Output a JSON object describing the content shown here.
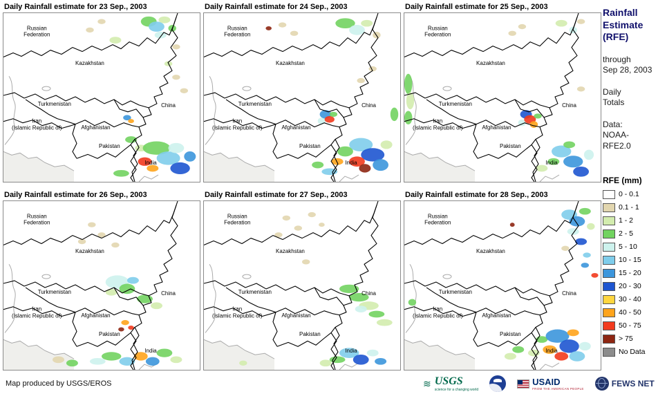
{
  "panels": [
    {
      "title": "Daily Rainfall estimate for 23 Sep., 2003",
      "spots": [
        [
          50,
          5,
          2,
          1.5,
          "t"
        ],
        [
          44,
          10,
          2,
          1.5,
          "t"
        ],
        [
          57,
          16,
          3,
          2,
          "g1"
        ],
        [
          74,
          5,
          4,
          3,
          "g2"
        ],
        [
          78,
          8,
          4,
          3,
          "b10"
        ],
        [
          82,
          4,
          3,
          2,
          "g1"
        ],
        [
          80,
          13,
          3,
          2,
          "c5"
        ],
        [
          86,
          9,
          2,
          2,
          "g2"
        ],
        [
          88,
          20,
          2,
          1.5,
          "t"
        ],
        [
          84,
          30,
          2,
          1.5,
          "g1"
        ],
        [
          88,
          38,
          2,
          1.5,
          "t"
        ],
        [
          92,
          46,
          2,
          1.5,
          "t"
        ],
        [
          63,
          62,
          2,
          1.6,
          "b15"
        ],
        [
          65,
          64,
          1.5,
          1.2,
          "o40"
        ],
        [
          65,
          75,
          3,
          2,
          "g2"
        ],
        [
          70,
          80,
          3,
          2,
          "g1"
        ],
        [
          78,
          80,
          7,
          4,
          "g2"
        ],
        [
          84,
          86,
          6,
          4,
          "b10"
        ],
        [
          90,
          92,
          5,
          3.5,
          "b20"
        ],
        [
          88,
          80,
          4,
          3,
          "c5"
        ],
        [
          95,
          85,
          3,
          3,
          "b15"
        ],
        [
          72,
          88,
          3.5,
          2.5,
          "r50"
        ],
        [
          76,
          92,
          3,
          2,
          "o40"
        ],
        [
          60,
          95,
          4,
          2,
          "g2"
        ]
      ]
    },
    {
      "title": "Daily Rainfall estimate for 24 Sep., 2003",
      "spots": [
        [
          33,
          9,
          1.5,
          1.2,
          "r75"
        ],
        [
          40,
          7,
          2,
          1.5,
          "t"
        ],
        [
          46,
          12,
          2,
          1.5,
          "t"
        ],
        [
          72,
          6,
          5,
          3,
          "g2"
        ],
        [
          78,
          10,
          4,
          3,
          "c5"
        ],
        [
          83,
          6,
          3,
          2,
          "g1"
        ],
        [
          88,
          13,
          2,
          2,
          "t"
        ],
        [
          80,
          40,
          2,
          1.5,
          "t"
        ],
        [
          86,
          33,
          2,
          1.5,
          "t"
        ],
        [
          60,
          64,
          2,
          2,
          "c5"
        ],
        [
          62,
          60,
          3,
          2.5,
          "b15"
        ],
        [
          64,
          63,
          2.5,
          2,
          "r50"
        ],
        [
          66,
          60,
          2,
          1.5,
          "g2"
        ],
        [
          97,
          60,
          2,
          4,
          "g2"
        ],
        [
          72,
          82,
          4,
          3,
          "g2"
        ],
        [
          80,
          78,
          6,
          4,
          "b10"
        ],
        [
          86,
          84,
          6,
          4,
          "b20"
        ],
        [
          78,
          88,
          4,
          3,
          "r50"
        ],
        [
          82,
          92,
          3,
          2.5,
          "r75"
        ],
        [
          90,
          90,
          4,
          3.5,
          "b15"
        ],
        [
          68,
          88,
          3,
          2,
          "o40"
        ],
        [
          93,
          78,
          3,
          2.5,
          "g1"
        ],
        [
          64,
          94,
          4,
          2,
          "b10"
        ],
        [
          58,
          90,
          3,
          2,
          "g2"
        ]
      ]
    },
    {
      "title": "Daily Rainfall estimate for 25 Sep., 2003",
      "spots": [
        [
          2,
          42,
          2,
          6,
          "g2"
        ],
        [
          3,
          52,
          2,
          5,
          "g1"
        ],
        [
          2,
          62,
          2,
          4,
          "g2"
        ],
        [
          55,
          12,
          2,
          1.5,
          "t"
        ],
        [
          60,
          8,
          2,
          1.5,
          "t"
        ],
        [
          80,
          6,
          3,
          2,
          "g1"
        ],
        [
          86,
          10,
          2,
          2,
          "c5"
        ],
        [
          90,
          5,
          2,
          1.5,
          "t"
        ],
        [
          90,
          45,
          2,
          1.5,
          "t"
        ],
        [
          60,
          65,
          2,
          2,
          "c5"
        ],
        [
          62,
          60,
          3,
          2.5,
          "b20"
        ],
        [
          64,
          63,
          3,
          2.5,
          "r50"
        ],
        [
          66,
          66,
          2,
          2,
          "o40"
        ],
        [
          68,
          61,
          2,
          1.5,
          "g2"
        ],
        [
          70,
          92,
          3,
          2,
          "g1"
        ],
        [
          76,
          88,
          3,
          2,
          "g2"
        ],
        [
          80,
          82,
          5,
          3.5,
          "b10"
        ],
        [
          86,
          88,
          5,
          3.5,
          "b15"
        ],
        [
          90,
          94,
          4,
          3,
          "b20"
        ],
        [
          94,
          84,
          2.5,
          3,
          "c5"
        ],
        [
          84,
          78,
          3,
          2,
          "g2"
        ]
      ]
    },
    {
      "title": "Daily Rainfall estimate for 26 Sep., 2003",
      "spots": [
        [
          45,
          14,
          2,
          1.5,
          "t"
        ],
        [
          50,
          20,
          2,
          1.5,
          "t"
        ],
        [
          57,
          26,
          2,
          1.5,
          "t"
        ],
        [
          40,
          24,
          2,
          1.5,
          "t"
        ],
        [
          55,
          54,
          3,
          2,
          "g1"
        ],
        [
          58,
          48,
          6,
          4,
          "c5"
        ],
        [
          63,
          52,
          4,
          3,
          "g2"
        ],
        [
          66,
          47,
          3,
          2,
          "b10"
        ],
        [
          72,
          58,
          4,
          2.5,
          "g2"
        ],
        [
          78,
          62,
          3,
          2,
          "g1"
        ],
        [
          62,
          72,
          2,
          1.5,
          "o40"
        ],
        [
          65,
          75,
          1.5,
          1.2,
          "r50"
        ],
        [
          60,
          76,
          1.5,
          1.2,
          "r75"
        ],
        [
          28,
          94,
          3,
          2,
          "t"
        ],
        [
          35,
          96,
          3,
          2,
          "g2"
        ],
        [
          48,
          95,
          4,
          2,
          "c5"
        ],
        [
          55,
          92,
          5,
          2.5,
          "g2"
        ],
        [
          63,
          95,
          4,
          2.5,
          "b10"
        ],
        [
          70,
          92,
          3.5,
          2.5,
          "o40"
        ],
        [
          76,
          95,
          3.5,
          2.5,
          "b15"
        ],
        [
          82,
          90,
          4,
          2.5,
          "g2"
        ],
        [
          88,
          94,
          3,
          2,
          "g1"
        ]
      ]
    },
    {
      "title": "Daily Rainfall estimate for 27 Sep., 2003",
      "spots": [
        [
          38,
          20,
          2,
          1.5,
          "t"
        ],
        [
          42,
          10,
          2,
          1.5,
          "t"
        ],
        [
          48,
          16,
          2,
          1.5,
          "t"
        ],
        [
          55,
          8,
          2,
          1.5,
          "t"
        ],
        [
          60,
          14,
          1.5,
          1.2,
          "t"
        ],
        [
          52,
          36,
          2,
          1.5,
          "t"
        ],
        [
          74,
          52,
          5,
          2.5,
          "g2"
        ],
        [
          79,
          57,
          5,
          2.5,
          "g2"
        ],
        [
          84,
          62,
          5,
          2.5,
          "g1"
        ],
        [
          88,
          67,
          4,
          2,
          "g2"
        ],
        [
          92,
          72,
          4,
          2,
          "g1"
        ],
        [
          80,
          64,
          3,
          2,
          "c5"
        ],
        [
          62,
          96,
          3,
          2,
          "g1"
        ],
        [
          68,
          94,
          4,
          2,
          "g2"
        ],
        [
          74,
          90,
          5,
          3,
          "b10"
        ],
        [
          80,
          94,
          4,
          3,
          "b20"
        ],
        [
          86,
          90,
          3,
          2,
          "c5"
        ],
        [
          90,
          95,
          3,
          2,
          "b15"
        ],
        [
          20,
          96,
          2,
          1.5,
          "g1"
        ]
      ]
    },
    {
      "title": "Daily Rainfall estimate for 28 Sep., 2003",
      "spots": [
        [
          55,
          14,
          1.2,
          1.2,
          "r75"
        ],
        [
          82,
          28,
          2,
          1.5,
          "t"
        ],
        [
          84,
          8,
          4,
          3,
          "b10"
        ],
        [
          88,
          12,
          4,
          3,
          "b15"
        ],
        [
          92,
          6,
          3,
          2,
          "g2"
        ],
        [
          86,
          18,
          3,
          2,
          "c5"
        ],
        [
          90,
          24,
          3,
          2,
          "b20"
        ],
        [
          95,
          15,
          2,
          2,
          "g1"
        ],
        [
          93,
          32,
          2,
          1.5,
          "b10"
        ],
        [
          92,
          38,
          2,
          1.5,
          "b15"
        ],
        [
          97,
          44,
          1.8,
          1.4,
          "r50"
        ],
        [
          4,
          60,
          2,
          2,
          "g2"
        ],
        [
          54,
          92,
          3,
          2,
          "g1"
        ],
        [
          58,
          88,
          3,
          2,
          "g2"
        ],
        [
          66,
          90,
          3,
          2,
          "g1"
        ],
        [
          70,
          82,
          3,
          2,
          "g2"
        ],
        [
          78,
          80,
          6,
          4,
          "b15"
        ],
        [
          84,
          86,
          5,
          4,
          "b20"
        ],
        [
          74,
          88,
          3.5,
          2.5,
          "o40"
        ],
        [
          80,
          92,
          3.5,
          2.5,
          "r50"
        ],
        [
          88,
          92,
          4,
          3,
          "b10"
        ],
        [
          92,
          86,
          3,
          2.5,
          "c5"
        ],
        [
          86,
          78,
          3,
          2,
          "o40"
        ]
      ]
    }
  ],
  "map_labels": [
    {
      "lines": [
        "Russian",
        "Federation"
      ]
    },
    {
      "lines": [
        "Kazakhstan"
      ]
    },
    {
      "lines": [
        "Turkmenistan"
      ]
    },
    {
      "lines": [
        "Iran",
        "(Islamic Republic of)"
      ]
    },
    {
      "lines": [
        "Afghanistan"
      ]
    },
    {
      "lines": [
        "Pakistan"
      ]
    },
    {
      "lines": [
        "China"
      ]
    },
    {
      "lines": [
        "India"
      ]
    }
  ],
  "sidebar": {
    "title_lines": [
      "Rainfall",
      "Estimate",
      "(RFE)"
    ],
    "through_lines": [
      "through",
      "Sep 28, 2003"
    ],
    "totals_lines": [
      "Daily",
      "Totals"
    ],
    "source_lines": [
      "Data:",
      "NOAA-",
      "RFE2.0"
    ],
    "legend_title": "RFE (mm)",
    "legend": [
      {
        "key": "w",
        "label": "0 - 0.1",
        "color": "#FFFFFF"
      },
      {
        "key": "t",
        "label": "0.1 - 1",
        "color": "#E2D6AF"
      },
      {
        "key": "g1",
        "label": "1 - 2",
        "color": "#D3ECAE"
      },
      {
        "key": "g2",
        "label": "2 - 5",
        "color": "#72D360"
      },
      {
        "key": "c5",
        "label": "5 - 10",
        "color": "#CDF2ED"
      },
      {
        "key": "b10",
        "label": "10 - 15",
        "color": "#7FCDEB"
      },
      {
        "key": "b15",
        "label": "15 - 20",
        "color": "#3C96DC"
      },
      {
        "key": "b20",
        "label": "20 - 30",
        "color": "#1E55D0"
      },
      {
        "key": "y30",
        "label": "30 - 40",
        "color": "#FFD63F"
      },
      {
        "key": "o40",
        "label": "40 - 50",
        "color": "#FFA41C"
      },
      {
        "key": "r50",
        "label": "50 - 75",
        "color": "#F23A1D"
      },
      {
        "key": "r75",
        "label": "> 75",
        "color": "#8E2612"
      },
      {
        "key": "nd",
        "label": "No Data",
        "color": "#8C8C8C"
      }
    ]
  },
  "footer": {
    "credit": "Map produced by USGS/EROS",
    "logos": [
      {
        "name": "USGS",
        "tagline": "science for a changing world"
      },
      {
        "name": "NOAA"
      },
      {
        "name": "USAID",
        "tagline": "FROM THE AMERICAN PEOPLE"
      },
      {
        "name": "FEWS NET"
      }
    ]
  }
}
